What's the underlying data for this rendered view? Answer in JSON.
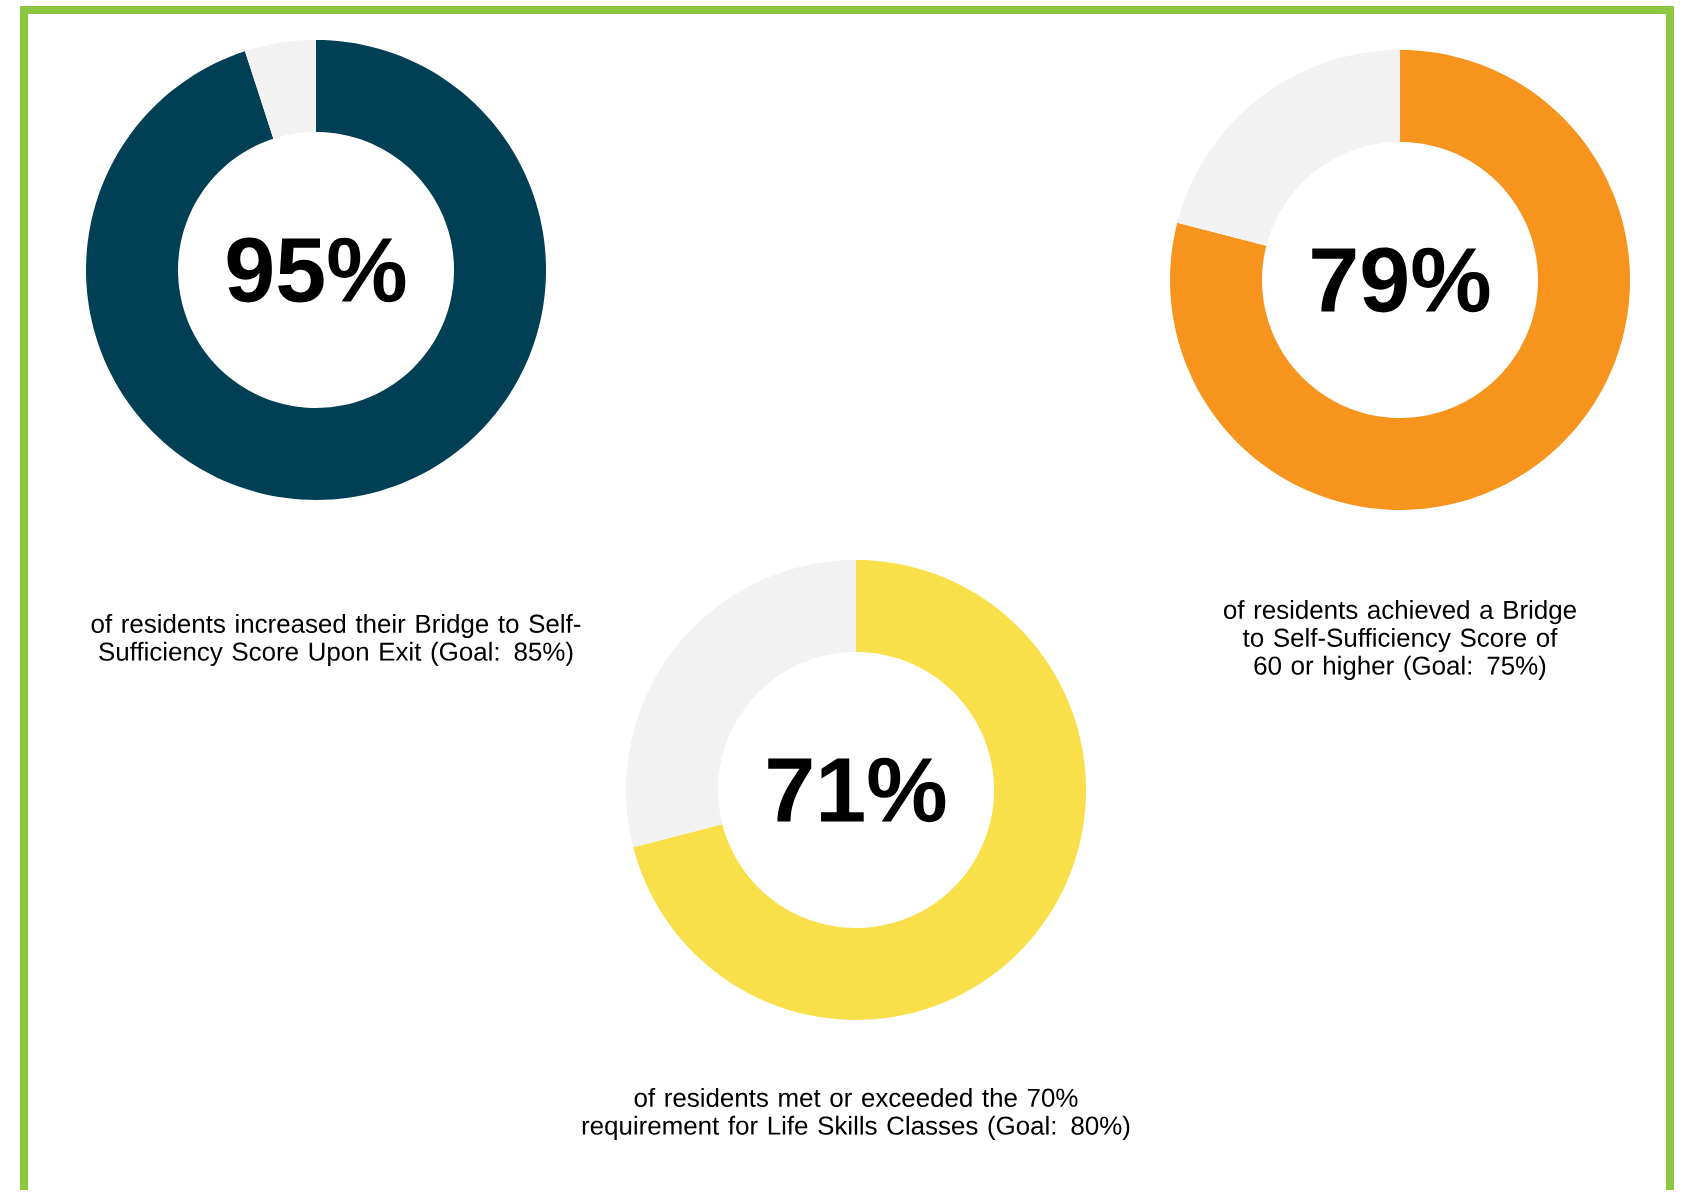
{
  "chart_data": [
    {
      "type": "donut",
      "categories": [
        null,
        null
      ],
      "values": [
        95,
        5
      ],
      "colors": [
        "#003f54",
        "#f2f2f2"
      ],
      "value_labels": [
        "95%",
        null
      ],
      "annotations": [
        "of residents increased their Bridge to Self-Sufficiency Score Upon Exit (Goal: 85%)"
      ]
    },
    {
      "type": "donut",
      "categories": [
        null,
        null
      ],
      "values": [
        79,
        21
      ],
      "colors": [
        "#f7941d",
        "#f2f2f2"
      ],
      "value_labels": [
        "79%",
        null
      ],
      "annotations": [
        "of residents achieved a Bridge to Self-Sufficiency Score of 60 or higher (Goal: 75%)"
      ]
    },
    {
      "type": "donut",
      "categories": [
        null,
        null
      ],
      "values": [
        71,
        29
      ],
      "colors": [
        "#f9e04b",
        "#f2f2f2"
      ],
      "value_labels": [
        "71%",
        null
      ],
      "annotations": [
        "of residents met or exceeded the 70% requirement for Life Skills Classes (Goal: 80%)"
      ]
    }
  ]
}
